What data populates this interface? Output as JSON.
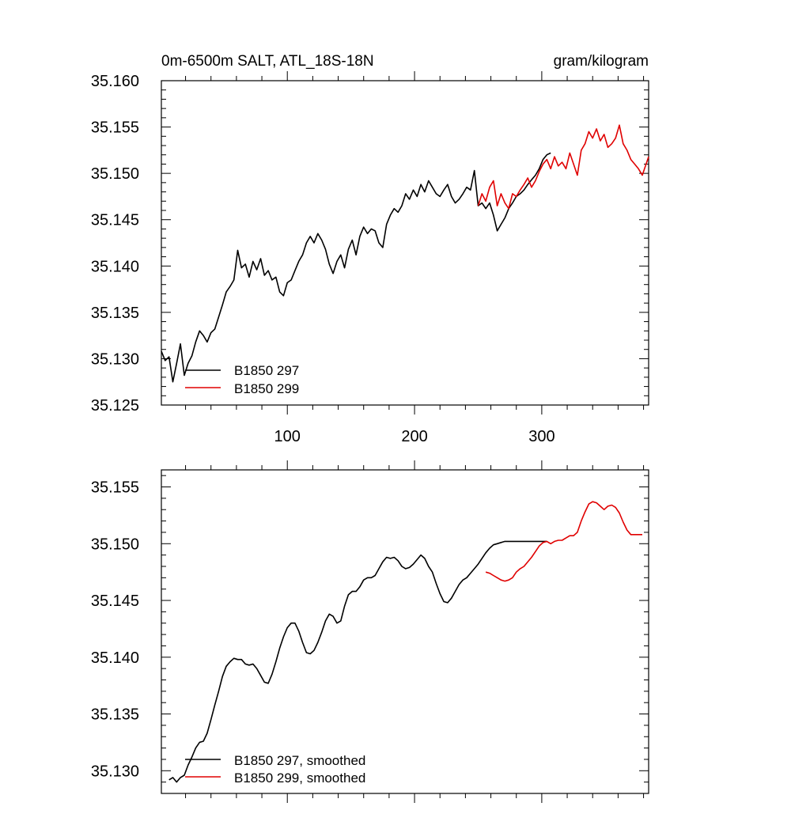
{
  "chart_data": [
    {
      "type": "line",
      "title_left": "0m-6500m SALT, ATL_18S-18N",
      "title_right": "gram/kilogram",
      "xlabel": "",
      "ylabel": "",
      "xlim": [
        1,
        384
      ],
      "ylim": [
        35.125,
        35.16
      ],
      "x_ticks": [
        100,
        200,
        300
      ],
      "x_tick_labels": [
        "100",
        "200",
        "300"
      ],
      "y_ticks": [
        35.125,
        35.13,
        35.135,
        35.14,
        35.145,
        35.15,
        35.155,
        35.16
      ],
      "y_tick_labels": [
        "35.125",
        "35.130",
        "35.135",
        "35.140",
        "35.145",
        "35.150",
        "35.155",
        "35.160"
      ],
      "grid": false,
      "legend_position": "bottom-left",
      "series": [
        {
          "name": "B1850 297",
          "color": "#000000",
          "x": [
            1,
            4,
            7,
            10,
            13,
            16,
            19,
            22,
            25,
            28,
            31,
            34,
            37,
            40,
            43,
            46,
            49,
            52,
            55,
            58,
            61,
            64,
            67,
            70,
            73,
            76,
            79,
            82,
            85,
            88,
            91,
            94,
            97,
            100,
            103,
            106,
            109,
            112,
            115,
            118,
            121,
            124,
            127,
            130,
            133,
            136,
            139,
            142,
            145,
            148,
            151,
            154,
            157,
            160,
            163,
            166,
            169,
            172,
            175,
            178,
            181,
            184,
            187,
            190,
            193,
            196,
            199,
            202,
            205,
            208,
            211,
            214,
            217,
            220,
            223,
            226,
            229,
            232,
            235,
            238,
            241,
            244,
            247,
            250,
            253,
            256,
            259,
            262,
            265,
            268,
            271,
            274,
            277,
            280,
            283,
            286,
            289,
            292,
            295,
            298,
            301,
            304,
            307
          ],
          "values": [
            35.1308,
            35.1298,
            35.1302,
            35.1275,
            35.1295,
            35.1316,
            35.1282,
            35.1295,
            35.1303,
            35.1318,
            35.133,
            35.1325,
            35.1318,
            35.1328,
            35.1332,
            35.1345,
            35.1358,
            35.1372,
            35.1378,
            35.1385,
            35.1417,
            35.1398,
            35.1402,
            35.1388,
            35.1405,
            35.1396,
            35.1408,
            35.139,
            35.1395,
            35.1385,
            35.1388,
            35.1372,
            35.1368,
            35.1382,
            35.1385,
            35.1395,
            35.1405,
            35.1412,
            35.1425,
            35.1432,
            35.1425,
            35.1435,
            35.1428,
            35.1418,
            35.1402,
            35.1392,
            35.1405,
            35.1412,
            35.1398,
            35.1418,
            35.1428,
            35.1412,
            35.1432,
            35.1442,
            35.1435,
            35.144,
            35.1438,
            35.1425,
            35.142,
            35.1445,
            35.1455,
            35.1462,
            35.1458,
            35.1465,
            35.1478,
            35.1472,
            35.1482,
            35.1475,
            35.1488,
            35.148,
            35.1492,
            35.1485,
            35.1478,
            35.1475,
            35.1482,
            35.1488,
            35.1475,
            35.1468,
            35.1472,
            35.1478,
            35.1485,
            35.1482,
            35.1503,
            35.1465,
            35.1468,
            35.1462,
            35.1468,
            35.1455,
            35.1438,
            35.1445,
            35.1452,
            35.1462,
            35.1468,
            35.1475,
            35.1478,
            35.1482,
            35.1488,
            35.1493,
            35.1498,
            35.1505,
            35.1515,
            35.152,
            35.1522
          ]
        },
        {
          "name": "B1850 299",
          "color": "#e00000",
          "x": [
            250,
            253,
            256,
            259,
            262,
            265,
            268,
            271,
            274,
            277,
            280,
            283,
            286,
            289,
            292,
            295,
            298,
            301,
            304,
            307,
            310,
            313,
            316,
            319,
            322,
            325,
            328,
            331,
            334,
            337,
            340,
            343,
            346,
            349,
            352,
            355,
            358,
            361,
            364,
            367,
            370,
            373,
            376,
            379,
            382,
            384
          ],
          "values": [
            35.1465,
            35.1478,
            35.147,
            35.1485,
            35.1492,
            35.1465,
            35.1478,
            35.1468,
            35.1462,
            35.1478,
            35.1475,
            35.1482,
            35.1488,
            35.1495,
            35.1485,
            35.1492,
            35.1502,
            35.151,
            35.1515,
            35.1505,
            35.1518,
            35.1508,
            35.1512,
            35.1505,
            35.1522,
            35.151,
            35.1498,
            35.1525,
            35.1532,
            35.1545,
            35.1538,
            35.1548,
            35.1535,
            35.1542,
            35.1528,
            35.1532,
            35.1538,
            35.1552,
            35.1532,
            35.1525,
            35.1515,
            35.151,
            35.1505,
            35.1498,
            35.151,
            35.1518
          ]
        }
      ]
    },
    {
      "type": "line",
      "xlabel": "",
      "ylabel": "",
      "xlim": [
        1,
        384
      ],
      "ylim": [
        35.128,
        35.1565
      ],
      "x_ticks": [
        100,
        200,
        300
      ],
      "y_ticks": [
        35.13,
        35.135,
        35.14,
        35.145,
        35.15,
        35.155
      ],
      "y_tick_labels": [
        "35.130",
        "35.135",
        "35.140",
        "35.145",
        "35.150",
        "35.155"
      ],
      "grid": false,
      "legend_position": "bottom-left",
      "series": [
        {
          "name": "B1850 297, smoothed",
          "color": "#000000",
          "x": [
            7,
            10,
            13,
            16,
            19,
            22,
            25,
            28,
            31,
            34,
            37,
            40,
            43,
            46,
            49,
            52,
            55,
            58,
            61,
            64,
            67,
            70,
            73,
            76,
            79,
            82,
            85,
            88,
            91,
            94,
            97,
            100,
            103,
            106,
            109,
            112,
            115,
            118,
            121,
            124,
            127,
            130,
            133,
            136,
            139,
            142,
            145,
            148,
            151,
            154,
            157,
            160,
            163,
            166,
            169,
            172,
            175,
            178,
            181,
            184,
            187,
            190,
            193,
            196,
            199,
            202,
            205,
            208,
            211,
            214,
            217,
            220,
            223,
            226,
            229,
            232,
            235,
            238,
            241,
            244,
            247,
            250,
            253,
            256,
            259,
            262,
            265,
            268,
            271,
            274,
            277,
            280,
            283,
            286,
            289,
            292,
            295,
            298,
            301,
            304
          ],
          "values": [
            35.1292,
            35.1294,
            35.129,
            35.1294,
            35.1296,
            35.1305,
            35.1312,
            35.132,
            35.1325,
            35.1326,
            35.1333,
            35.1345,
            35.1358,
            35.137,
            35.1383,
            35.1392,
            35.1396,
            35.1399,
            35.1398,
            35.1398,
            35.1394,
            35.1393,
            35.1394,
            35.139,
            35.1384,
            35.1378,
            35.1377,
            35.1385,
            35.1396,
            35.1408,
            35.1418,
            35.1426,
            35.143,
            35.143,
            35.1423,
            35.1413,
            35.1404,
            35.1403,
            35.1406,
            35.1413,
            35.1422,
            35.1432,
            35.1438,
            35.1436,
            35.143,
            35.1432,
            35.1445,
            35.1455,
            35.1458,
            35.1458,
            35.1462,
            35.1468,
            35.147,
            35.147,
            35.1472,
            35.1478,
            35.1484,
            35.1488,
            35.1487,
            35.1488,
            35.1485,
            35.148,
            35.1478,
            35.1479,
            35.1482,
            35.1486,
            35.149,
            35.1487,
            35.148,
            35.1475,
            35.1465,
            35.1456,
            35.1449,
            35.1448,
            35.1452,
            35.1458,
            35.1464,
            35.1468,
            35.147,
            35.1474,
            35.1478,
            35.1482,
            35.1487,
            35.1492,
            35.1496,
            35.1499,
            35.15,
            35.1501,
            35.1502,
            35.1502,
            35.1502,
            35.1502,
            35.1502,
            35.1502,
            35.1502,
            35.1502,
            35.1502,
            35.1502,
            35.1502,
            35.1502
          ]
        },
        {
          "name": "B1850 299, smoothed",
          "color": "#e00000",
          "x": [
            256,
            259,
            262,
            265,
            268,
            271,
            274,
            277,
            280,
            283,
            286,
            289,
            292,
            295,
            298,
            301,
            304,
            307,
            310,
            313,
            316,
            319,
            322,
            325,
            328,
            331,
            334,
            337,
            340,
            343,
            346,
            349,
            352,
            355,
            358,
            361,
            364,
            367,
            370,
            373,
            376,
            379
          ],
          "values": [
            35.1475,
            35.1474,
            35.1472,
            35.147,
            35.1468,
            35.1467,
            35.1468,
            35.147,
            35.1475,
            35.1478,
            35.148,
            35.1484,
            35.1488,
            35.1493,
            35.1498,
            35.1501,
            35.1502,
            35.15,
            35.1502,
            35.1503,
            35.1503,
            35.1505,
            35.1507,
            35.1507,
            35.151,
            35.152,
            35.1528,
            35.1535,
            35.1537,
            35.1536,
            35.1533,
            35.153,
            35.1533,
            35.1534,
            35.1532,
            35.1527,
            35.1519,
            35.1512,
            35.1508,
            35.1508,
            35.1508,
            35.1508
          ]
        }
      ]
    }
  ]
}
